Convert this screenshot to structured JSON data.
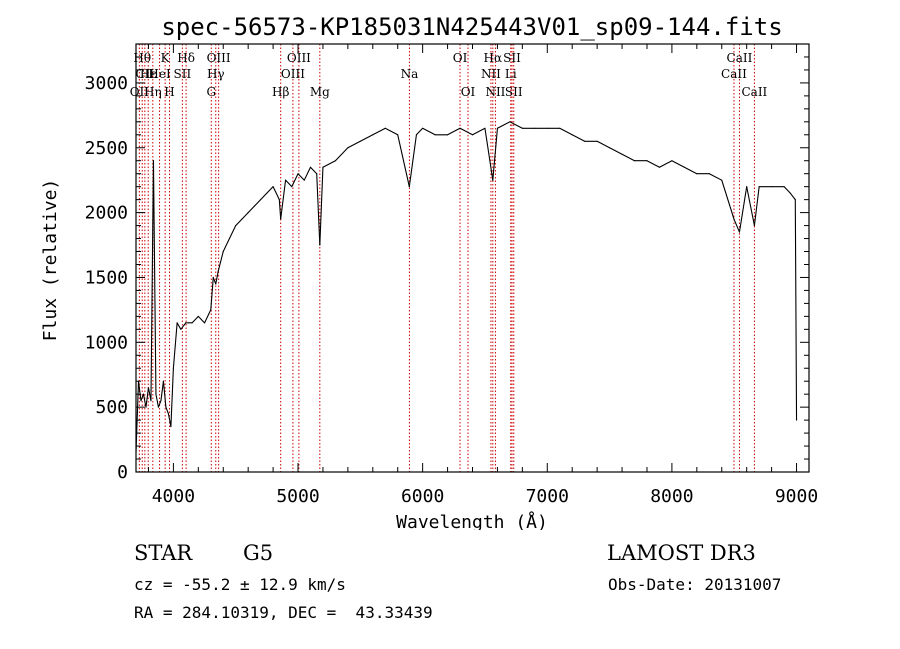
{
  "chart_data": {
    "type": "line",
    "title": "spec-56573-KP185031N425443V01_sp09-144.fits",
    "xlabel": "Wavelength (Å)",
    "ylabel": "Flux (relative)",
    "xlim": [
      3700,
      9100
    ],
    "ylim": [
      0,
      3300
    ],
    "xticks": [
      4000,
      5000,
      6000,
      7000,
      8000,
      9000
    ],
    "yticks": [
      0,
      500,
      1000,
      1500,
      2000,
      2500,
      3000
    ],
    "grid": false,
    "series": [
      {
        "x": [
          3700,
          3720,
          3740,
          3760,
          3780,
          3800,
          3820,
          3840,
          3860,
          3880,
          3900,
          3920,
          3940,
          3960,
          3980,
          4000,
          4030,
          4060,
          4100,
          4150,
          4200,
          4250,
          4300,
          4320,
          4340,
          4360,
          4400,
          4450,
          4500,
          4550,
          4600,
          4650,
          4700,
          4750,
          4800,
          4850,
          4861,
          4900,
          4950,
          5000,
          5050,
          5100,
          5150,
          5175,
          5200,
          5300,
          5400,
          5500,
          5600,
          5700,
          5800,
          5893,
          5950,
          6000,
          6100,
          6200,
          6300,
          6400,
          6500,
          6563,
          6600,
          6700,
          6800,
          6900,
          7000,
          7100,
          7200,
          7300,
          7400,
          7500,
          7600,
          7700,
          7800,
          7900,
          8000,
          8100,
          8200,
          8300,
          8400,
          8498,
          8542,
          8600,
          8662,
          8700,
          8800,
          8900,
          8950,
          8990,
          9000
        ],
        "y": [
          150,
          700,
          550,
          600,
          500,
          650,
          550,
          2400,
          600,
          500,
          550,
          700,
          500,
          450,
          350,
          800,
          1150,
          1100,
          1150,
          1150,
          1200,
          1150,
          1250,
          1500,
          1450,
          1550,
          1700,
          1800,
          1900,
          1950,
          2000,
          2050,
          2100,
          2150,
          2200,
          2100,
          1950,
          2250,
          2200,
          2300,
          2250,
          2350,
          2300,
          1750,
          2350,
          2400,
          2500,
          2550,
          2600,
          2650,
          2600,
          2200,
          2600,
          2650,
          2600,
          2600,
          2650,
          2600,
          2650,
          2250,
          2650,
          2700,
          2650,
          2650,
          2650,
          2650,
          2600,
          2550,
          2550,
          2500,
          2450,
          2400,
          2400,
          2350,
          2400,
          2350,
          2300,
          2300,
          2250,
          1950,
          1850,
          2200,
          1900,
          2200,
          2200,
          2200,
          2150,
          2100,
          400
        ]
      }
    ],
    "lines": [
      {
        "wave": 3727,
        "row": 3,
        "label": "OII"
      },
      {
        "wave": 3750,
        "row": 1,
        "label": "Hθ"
      },
      {
        "wave": 3771,
        "row": 2,
        "label": "CII"
      },
      {
        "wave": 3798,
        "row": 2,
        "label": "Hε"
      },
      {
        "wave": 3835,
        "row": 3,
        "label": "Hη"
      },
      {
        "wave": 3889,
        "row": 2,
        "label": "HeI"
      },
      {
        "wave": 3934,
        "row": 1,
        "label": "K"
      },
      {
        "wave": 3969,
        "row": 3,
        "label": "H"
      },
      {
        "wave": 4072,
        "row": 2,
        "label": "SII"
      },
      {
        "wave": 4102,
        "row": 1,
        "label": "Hδ"
      },
      {
        "wave": 4304,
        "row": 3,
        "label": "G"
      },
      {
        "wave": 4340,
        "row": 2,
        "label": "Hγ"
      },
      {
        "wave": 4363,
        "row": 1,
        "label": "OIII"
      },
      {
        "wave": 4861,
        "row": 3,
        "label": "Hβ"
      },
      {
        "wave": 4959,
        "row": 2,
        "label": "OIII"
      },
      {
        "wave": 5007,
        "row": 1,
        "label": "OIII"
      },
      {
        "wave": 5175,
        "row": 3,
        "label": "Mg"
      },
      {
        "wave": 5894,
        "row": 2,
        "label": "Na"
      },
      {
        "wave": 6300,
        "row": 1,
        "label": "OI"
      },
      {
        "wave": 6364,
        "row": 3,
        "label": "OI"
      },
      {
        "wave": 6548,
        "row": 2,
        "label": "NII"
      },
      {
        "wave": 6563,
        "row": 1,
        "label": "Hα"
      },
      {
        "wave": 6584,
        "row": 3,
        "label": "NII"
      },
      {
        "wave": 6707,
        "row": 2,
        "label": "Li"
      },
      {
        "wave": 6717,
        "row": 1,
        "label": "SII"
      },
      {
        "wave": 6731,
        "row": 3,
        "label": "SII"
      },
      {
        "wave": 8498,
        "row": 2,
        "label": "CaII"
      },
      {
        "wave": 8542,
        "row": 1,
        "label": "CaII"
      },
      {
        "wave": 8662,
        "row": 3,
        "label": "CaII"
      }
    ]
  },
  "info": {
    "class_label": "STAR",
    "subclass_label": "G5",
    "survey_label": "LAMOST DR3",
    "redshift_text": "cz = -55.2 ± 12.9 km/s",
    "obs_date_text": "Obs-Date: 20131007",
    "coords_text": "RA = 284.10319, DEC =  43.33439"
  },
  "colors": {
    "spectrum": "#000000",
    "line_marker": "#cc0000",
    "axes": "#000000"
  }
}
